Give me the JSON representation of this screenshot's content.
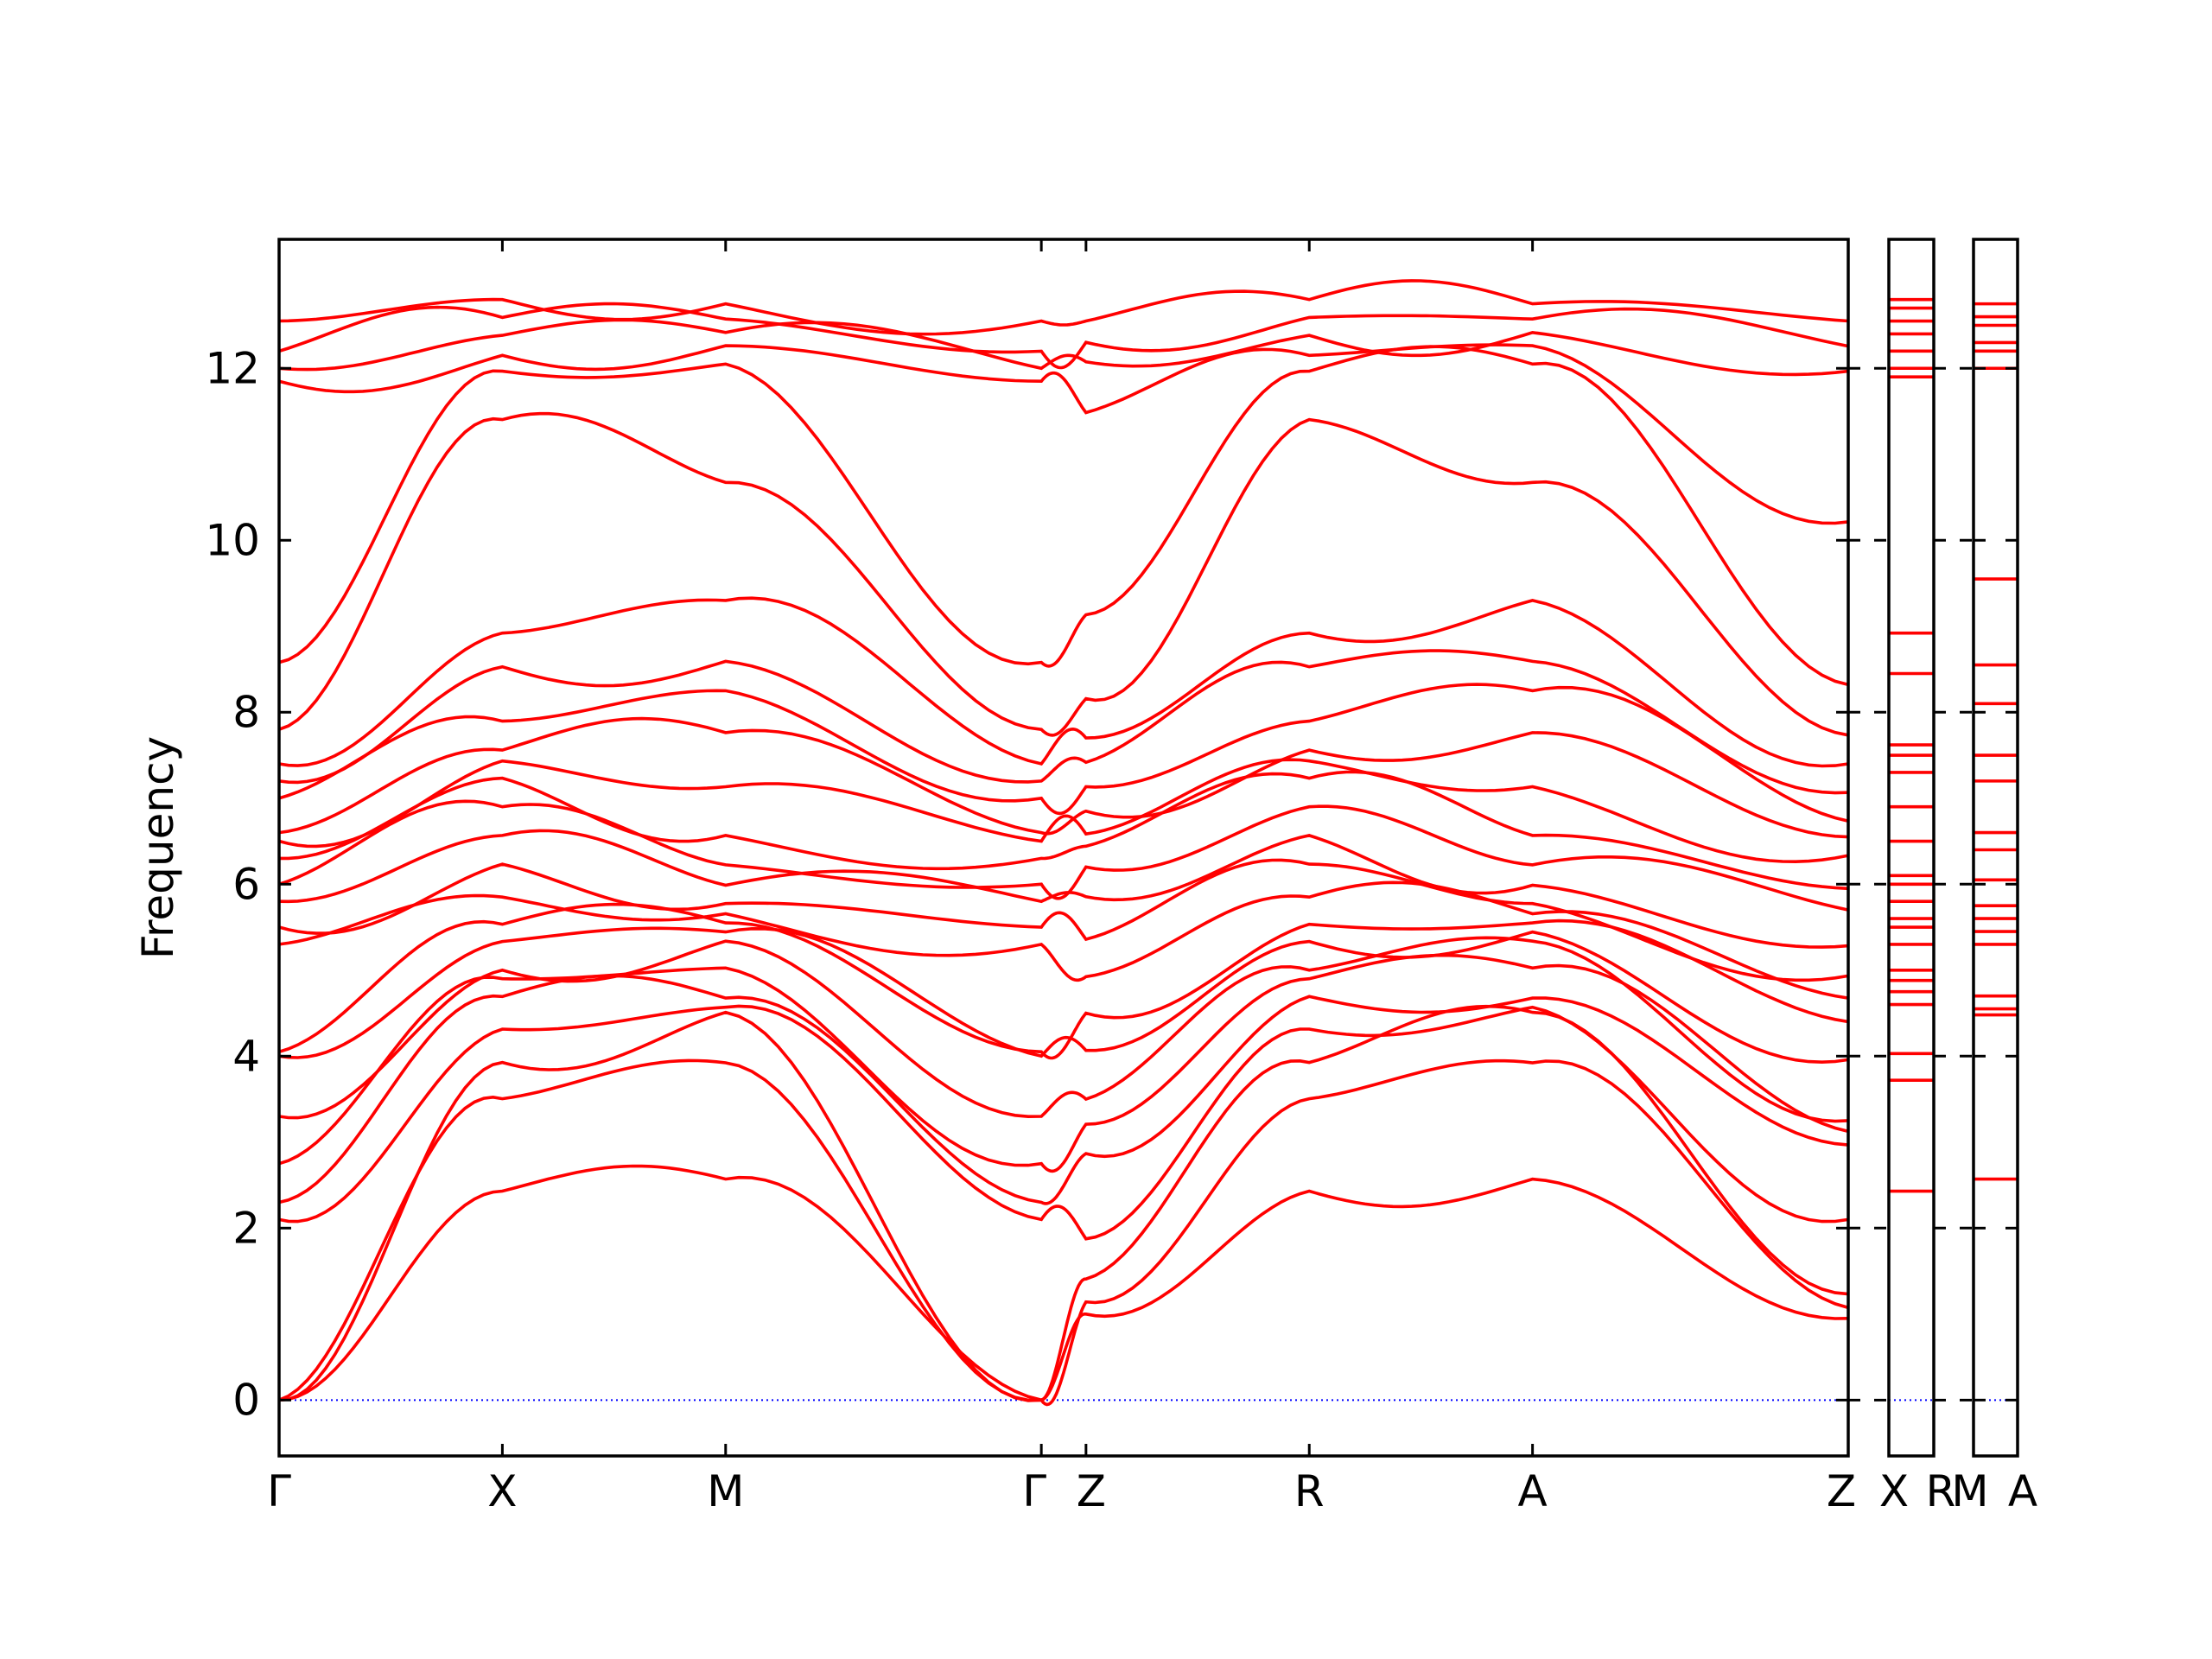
{
  "chart_data": {
    "type": "line",
    "title": "",
    "xlabel": "",
    "ylabel": "Frequency",
    "ylim": [
      -0.65,
      13.5
    ],
    "yticks": [
      0,
      2,
      4,
      6,
      8,
      10,
      12
    ],
    "zero_line": {
      "value": 0,
      "color": "#0000ff",
      "style": "dotted"
    },
    "band_color": "#ff0000",
    "panels": [
      {
        "id": "main",
        "labels": [
          "Γ",
          "X",
          "M",
          "Γ",
          "Z",
          "R",
          "A",
          "Z"
        ],
        "segments": [
          {
            "from": "Γ",
            "to": "X",
            "span": [
              0,
              1
            ]
          },
          {
            "from": "X",
            "to": "M",
            "span": [
              1,
              2
            ]
          },
          {
            "from": "M",
            "to": "Γ",
            "span": [
              2,
              3.414
            ]
          },
          {
            "from": "Γ",
            "to": "Z",
            "span": [
              3.414,
              3.614
            ]
          },
          {
            "from": "Z",
            "to": "R",
            "span": [
              3.614,
              4.614
            ]
          },
          {
            "from": "R",
            "to": "A",
            "span": [
              4.614,
              5.614
            ]
          },
          {
            "from": "A",
            "to": "Z",
            "span": [
              5.614,
              7.028
            ]
          }
        ],
        "point_values": {
          "Γ": [
            0,
            0,
            0,
            2.1,
            2.3,
            2.75,
            3.3,
            4.0,
            4.05,
            5.3,
            5.5,
            5.8,
            6.0,
            6.3,
            6.5,
            6.6,
            7.0,
            7.2,
            7.4,
            7.8,
            8.58,
            11.85,
            12.0,
            12.2,
            12.55
          ],
          "X": [
            2.43,
            3.72,
            4.03,
            4.6,
            4.88,
            5.0,
            5.4,
            5.6,
            6.1,
            6.5,
            6.9,
            7.3,
            7.5,
            7.62,
            8.45,
            8.92,
            11.9,
            12.0,
            12.3,
            12.55,
            12.8
          ],
          "M": [
            2.57,
            4.48,
            4.55,
            4.7,
            5.3,
            5.45,
            5.6,
            5.75,
            6.05,
            6.4,
            7.2,
            8.1,
            8.55,
            9.55,
            12.0,
            12.3,
            12.5,
            12.75
          ],
          "Γ2": [
            0,
            0,
            0,
            2.1,
            2.3,
            2.75,
            3.3,
            4.0,
            4.05,
            5.3,
            5.5,
            5.8,
            6.0,
            6.3,
            6.5,
            6.6,
            7.0,
            7.2,
            7.4,
            7.8,
            8.58,
            11.85,
            12.0,
            12.2,
            12.55
          ],
          "Z": [
            1.0,
            1.2,
            1.7,
            3.1,
            3.3,
            4.1,
            4.7,
            5.3,
            6.0,
            6.4,
            6.6,
            7.0,
            7.4,
            7.8,
            8.58,
            11.9,
            12.2,
            12.55
          ],
          "R": [
            2.43,
            3.72,
            4.03,
            4.6,
            4.88,
            5.0,
            5.4,
            5.6,
            6.1,
            6.5,
            6.9,
            7.3,
            7.5,
            7.62,
            8.45,
            8.92,
            11.9,
            12.0,
            12.3,
            12.55,
            12.8
          ],
          "A": [
            2.57,
            4.48,
            4.55,
            4.7,
            5.3,
            5.45,
            5.6,
            5.75,
            6.05,
            6.4,
            7.2,
            8.1,
            8.55,
            9.55,
            12.0,
            12.3,
            12.5,
            12.75
          ],
          "Z2": [
            0.95,
            1.1,
            1.3,
            2.9,
            3.1,
            3.25,
            4.1,
            4.55,
            4.8,
            5.2,
            5.7,
            6.0,
            6.5,
            6.6,
            7.0,
            7.4,
            7.8,
            8.58,
            11.85,
            12.2,
            12.55
          ]
        }
      },
      {
        "id": "XR",
        "labels": [
          "X",
          "R"
        ],
        "flat_bands": [
          2.43,
          3.72,
          4.03,
          4.6,
          4.75,
          4.88,
          5.0,
          5.3,
          5.5,
          5.6,
          5.8,
          6.0,
          6.1,
          6.5,
          6.9,
          7.3,
          7.5,
          7.62,
          8.45,
          8.92,
          11.9,
          12.0,
          12.2,
          12.4,
          12.55,
          12.7,
          12.8
        ]
      },
      {
        "id": "MA",
        "labels": [
          "M",
          "A"
        ],
        "flat_bands": [
          2.57,
          4.48,
          4.55,
          4.7,
          5.3,
          5.45,
          5.6,
          5.75,
          6.05,
          6.4,
          6.6,
          7.2,
          7.5,
          8.1,
          8.55,
          9.55,
          12.0,
          12.2,
          12.3,
          12.5,
          12.6,
          12.75
        ]
      }
    ]
  }
}
